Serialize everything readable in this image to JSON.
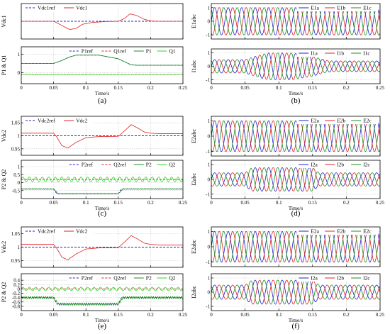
{
  "chart_data": [
    {
      "type": "line",
      "panel_label": "(a)",
      "xlabel": "Time/s",
      "xlim": [
        0,
        0.25
      ],
      "xticks": [
        "0",
        "0.05",
        "0.1",
        "0.15",
        "0.2",
        "0.25"
      ],
      "grid": true,
      "subplots": [
        {
          "ylabel": "Vdc1",
          "ylim": [
            0.94,
            1.06
          ],
          "yticks": [],
          "legend_position": "top-left",
          "series": [
            {
              "name": "Vdc1ref",
              "color": "#1f1fd0",
              "style": "dashed",
              "x": [
                0,
                0.25
              ],
              "y": [
                1.0,
                1.0
              ]
            },
            {
              "name": "Vdc1",
              "color": "#e02020",
              "style": "solid",
              "x": [
                0,
                0.05,
                0.055,
                0.065,
                0.075,
                0.085,
                0.095,
                0.11,
                0.13,
                0.15,
                0.16,
                0.168,
                0.178,
                0.19,
                0.2,
                0.21,
                0.25
              ],
              "y": [
                1.0,
                1.0,
                0.995,
                0.983,
                0.972,
                0.976,
                0.99,
                0.996,
                0.999,
                1.0,
                1.01,
                1.025,
                1.02,
                1.007,
                1.001,
                1.0,
                1.0
              ]
            }
          ]
        },
        {
          "ylabel": "P1 & Q1",
          "ylim": [
            -0.6,
            1.4
          ],
          "yticks": [
            "0",
            "1"
          ],
          "legend_position": "top-right",
          "series": [
            {
              "name": "P1ref",
              "color": "#1f1fd0",
              "style": "dashed",
              "x": [
                0,
                0.05,
                0.06,
                0.075,
                0.085,
                0.12,
                0.15,
                0.17,
                0.18,
                0.25
              ],
              "y": [
                0.5,
                0.5,
                0.62,
                0.85,
                0.95,
                0.95,
                0.75,
                0.42,
                0.4,
                0.4
              ]
            },
            {
              "name": "Q1ref",
              "color": "#e02020",
              "style": "dashed",
              "x": [
                0,
                0.25
              ],
              "y": [
                -0.1,
                -0.1
              ]
            },
            {
              "name": "P1",
              "color": "#1a8f1a",
              "style": "solid",
              "x": [
                0,
                0.05,
                0.06,
                0.075,
                0.085,
                0.12,
                0.15,
                0.17,
                0.18,
                0.25
              ],
              "y": [
                0.5,
                0.5,
                0.62,
                0.85,
                0.95,
                0.95,
                0.75,
                0.42,
                0.4,
                0.4
              ]
            },
            {
              "name": "Q1",
              "color": "#22dd22",
              "style": "solid",
              "x": [
                0,
                0.25
              ],
              "y": [
                -0.1,
                -0.1
              ]
            }
          ]
        }
      ]
    },
    {
      "type": "line",
      "panel_label": "(b)",
      "xlabel": "Time/s",
      "xlim": [
        0,
        0.25
      ],
      "xticks": [
        "0",
        "0.05",
        "0.1",
        "0.15",
        "0.2",
        "0.25"
      ],
      "grid": true,
      "subplots": [
        {
          "ylabel": "E1abc",
          "ylim": [
            -1.3,
            1.3
          ],
          "yticks": [
            "-1",
            "0",
            "1"
          ],
          "legend_position": "top-right",
          "series": [
            {
              "name": "E1a",
              "color": "#1f1fd0",
              "style": "solid",
              "amplitude": 1.0,
              "frequency_hz": 50,
              "phase_deg": 0
            },
            {
              "name": "E1b",
              "color": "#e02020",
              "style": "solid",
              "amplitude": 1.0,
              "frequency_hz": 50,
              "phase_deg": -120
            },
            {
              "name": "E1c",
              "color": "#1a8f1a",
              "style": "solid",
              "amplitude": 1.0,
              "frequency_hz": 50,
              "phase_deg": 120
            }
          ]
        },
        {
          "ylabel": "I1abc",
          "ylim": [
            -1.3,
            1.3
          ],
          "yticks": [
            "-1",
            "0",
            "1"
          ],
          "legend_position": "top-right",
          "envelope": {
            "x": [
              0,
              0.05,
              0.075,
              0.085,
              0.12,
              0.15,
              0.17,
              0.18,
              0.25
            ],
            "y": [
              0.5,
              0.5,
              0.9,
              1.0,
              1.0,
              0.75,
              0.45,
              0.4,
              0.4
            ]
          },
          "series": [
            {
              "name": "I1a",
              "color": "#1f1fd0",
              "style": "solid",
              "frequency_hz": 50,
              "phase_deg": 0
            },
            {
              "name": "I1b",
              "color": "#e02020",
              "style": "solid",
              "frequency_hz": 50,
              "phase_deg": -120
            },
            {
              "name": "I1c",
              "color": "#1a8f1a",
              "style": "solid",
              "frequency_hz": 50,
              "phase_deg": 120
            }
          ]
        }
      ]
    },
    {
      "type": "line",
      "panel_label": "(c)",
      "xlabel": "Time/s",
      "xlim": [
        0,
        0.25
      ],
      "xticks": [
        "0",
        "0.05",
        "0.1",
        "0.15",
        "0.2",
        "0.25"
      ],
      "grid": true,
      "subplots": [
        {
          "ylabel": "Vdc2",
          "ylim": [
            0.925,
            1.075
          ],
          "yticks": [
            "0.95",
            "1",
            "1.05"
          ],
          "legend_position": "top-left",
          "series": [
            {
              "name": "Vdc2ref",
              "color": "#1f1fd0",
              "style": "dashed",
              "x": [
                0,
                0.25
              ],
              "y": [
                1.0,
                1.0
              ]
            },
            {
              "name": "Vdc2",
              "color": "#e02020",
              "style": "solid",
              "x": [
                0,
                0.05,
                0.055,
                0.063,
                0.072,
                0.085,
                0.1,
                0.12,
                0.15,
                0.158,
                0.17,
                0.18,
                0.19,
                0.2,
                0.215,
                0.25
              ],
              "y": [
                1.01,
                1.01,
                0.995,
                0.962,
                0.953,
                0.975,
                0.993,
                0.997,
                0.998,
                1.015,
                1.043,
                1.03,
                1.015,
                1.01,
                1.008,
                1.008
              ]
            }
          ]
        },
        {
          "ylabel": "P2 & Q2",
          "ylim": [
            -1.0,
            1.4
          ],
          "yticks": [
            "-0.5",
            "0",
            "0.5",
            "1"
          ],
          "legend_position": "top-right",
          "series": [
            {
              "name": "P2ref",
              "color": "#1f1fd0",
              "style": "dashed",
              "x": [
                0,
                0.05,
                0.055,
                0.15,
                0.155,
                0.25
              ],
              "y": [
                -0.4,
                -0.4,
                -0.7,
                -0.7,
                -0.4,
                -0.4
              ]
            },
            {
              "name": "Q2ref",
              "color": "#e02020",
              "style": "dashed",
              "x": [
                0,
                0.25
              ],
              "y": [
                0.2,
                0.2
              ]
            },
            {
              "name": "P2",
              "color": "#1a8f1a",
              "style": "solid",
              "x": [
                0,
                0.05,
                0.057,
                0.15,
                0.157,
                0.25
              ],
              "y": [
                -0.4,
                -0.4,
                -0.7,
                -0.7,
                -0.4,
                -0.4
              ],
              "ripple": 0.02
            },
            {
              "name": "Q2",
              "color": "#22dd22",
              "style": "solid",
              "x": [
                0,
                0.25
              ],
              "y": [
                0.2,
                0.2
              ],
              "ripple": 0.15,
              "ripple_frequency_hz": 100
            }
          ]
        }
      ]
    },
    {
      "type": "line",
      "panel_label": "(d)",
      "xlabel": "Time/s",
      "xlim": [
        0,
        0.25
      ],
      "xticks": [
        "0",
        "0.05",
        "0.1",
        "0.15",
        "0.2",
        "0.25"
      ],
      "grid": true,
      "subplots": [
        {
          "ylabel": "E2abc",
          "ylim": [
            -1.3,
            1.3
          ],
          "yticks": [
            "-1",
            "0",
            "1"
          ],
          "legend_position": "top-right",
          "series": [
            {
              "name": "E2a",
              "color": "#1f1fd0",
              "style": "solid",
              "amplitude": 1.0,
              "frequency_hz": 50,
              "phase_deg": 0
            },
            {
              "name": "E2b",
              "color": "#e02020",
              "style": "solid",
              "amplitude": 1.0,
              "frequency_hz": 50,
              "phase_deg": -120
            },
            {
              "name": "E2c",
              "color": "#1a8f1a",
              "style": "solid",
              "amplitude": 1.0,
              "frequency_hz": 50,
              "phase_deg": 120
            }
          ]
        },
        {
          "ylabel": "I2abc",
          "ylim": [
            -1.3,
            1.3
          ],
          "yticks": [
            "-1",
            "0",
            "1"
          ],
          "legend_position": "top-right",
          "envelope": {
            "x": [
              0,
              0.05,
              0.06,
              0.15,
              0.16,
              0.25
            ],
            "y": [
              0.45,
              0.45,
              0.8,
              0.8,
              0.45,
              0.45
            ]
          },
          "series": [
            {
              "name": "I2a",
              "color": "#1f1fd0",
              "style": "solid",
              "frequency_hz": 50,
              "phase_deg": 0
            },
            {
              "name": "I2b",
              "color": "#e02020",
              "style": "solid",
              "frequency_hz": 50,
              "phase_deg": -120
            },
            {
              "name": "I2c",
              "color": "#1a8f1a",
              "style": "solid",
              "frequency_hz": 50,
              "phase_deg": 120
            }
          ]
        }
      ]
    },
    {
      "type": "line",
      "panel_label": "(e)",
      "xlabel": "Time/s",
      "xlim": [
        0,
        0.25
      ],
      "xticks": [
        "0",
        "0.05",
        "0.1",
        "0.15",
        "0.2",
        "0.25"
      ],
      "grid": true,
      "subplots": [
        {
          "ylabel": "Vdc2",
          "ylim": [
            0.925,
            1.075
          ],
          "yticks": [
            "0.95",
            "1",
            "1.05"
          ],
          "legend_position": "top-left",
          "series": [
            {
              "name": "Vdc2ref",
              "color": "#1f1fd0",
              "style": "dashed",
              "x": [
                0,
                0.25
              ],
              "y": [
                1.0,
                1.0
              ]
            },
            {
              "name": "Vdc2",
              "color": "#e02020",
              "style": "solid",
              "x": [
                0,
                0.05,
                0.055,
                0.063,
                0.072,
                0.085,
                0.1,
                0.12,
                0.15,
                0.158,
                0.17,
                0.18,
                0.19,
                0.2,
                0.215,
                0.25
              ],
              "y": [
                1.01,
                1.01,
                0.995,
                0.962,
                0.953,
                0.975,
                0.993,
                0.997,
                0.998,
                1.015,
                1.043,
                1.03,
                1.015,
                1.01,
                1.008,
                1.008
              ]
            }
          ]
        },
        {
          "ylabel": "P2 & Q2",
          "ylim": [
            -1.0,
            0.7
          ],
          "yticks": [
            "-0.8",
            "-0.6",
            "-0.4",
            "-0.2",
            "0",
            "0.2",
            "0.4"
          ],
          "legend_position": "top-right",
          "series": [
            {
              "name": "P2ref",
              "color": "#1f1fd0",
              "style": "dashed",
              "x": [
                0,
                0.05,
                0.055,
                0.15,
                0.155,
                0.25
              ],
              "y": [
                -0.4,
                -0.4,
                -0.7,
                -0.7,
                -0.4,
                -0.4
              ]
            },
            {
              "name": "Q2ref",
              "color": "#e02020",
              "style": "dashed",
              "x": [
                0,
                0.25
              ],
              "y": [
                0.0,
                0.0
              ]
            },
            {
              "name": "P2",
              "color": "#1a8f1a",
              "style": "solid",
              "x": [
                0,
                0.05,
                0.057,
                0.15,
                0.157,
                0.25
              ],
              "y": [
                -0.4,
                -0.4,
                -0.7,
                -0.7,
                -0.4,
                -0.4
              ],
              "ripple": 0.05
            },
            {
              "name": "Q2",
              "color": "#22dd22",
              "style": "solid",
              "x": [
                0,
                0.25
              ],
              "y": [
                0.0,
                0.0
              ],
              "ripple": 0.08,
              "ripple_frequency_hz": 100
            }
          ]
        }
      ]
    },
    {
      "type": "line",
      "panel_label": "(f)",
      "xlabel": "Time/s",
      "xlim": [
        0,
        0.25
      ],
      "xticks": [
        "0",
        "0.05",
        "0.1",
        "0.15",
        "0.2",
        "0.25"
      ],
      "grid": true,
      "subplots": [
        {
          "ylabel": "E2abc",
          "ylim": [
            -1.3,
            1.3
          ],
          "yticks": [
            "-1",
            "0",
            "1"
          ],
          "legend_position": "top-right",
          "series": [
            {
              "name": "E2a",
              "color": "#1f1fd0",
              "style": "solid",
              "amplitude": 1.0,
              "frequency_hz": 50,
              "phase_deg": 0
            },
            {
              "name": "E2b",
              "color": "#e02020",
              "style": "solid",
              "amplitude": 1.0,
              "frequency_hz": 50,
              "phase_deg": -120
            },
            {
              "name": "E2c",
              "color": "#1a8f1a",
              "style": "solid",
              "amplitude": 1.0,
              "frequency_hz": 50,
              "phase_deg": 120
            }
          ]
        },
        {
          "ylabel": "I2abc",
          "ylim": [
            -1.3,
            1.3
          ],
          "yticks": [
            "-1",
            "0",
            "1"
          ],
          "legend_position": "top-right",
          "envelope": {
            "x": [
              0,
              0.05,
              0.06,
              0.15,
              0.16,
              0.25
            ],
            "y": [
              0.5,
              0.5,
              0.85,
              0.85,
              0.5,
              0.5
            ]
          },
          "series": [
            {
              "name": "I2a",
              "color": "#1f1fd0",
              "style": "solid",
              "frequency_hz": 50,
              "phase_deg": 0
            },
            {
              "name": "I2b",
              "color": "#e02020",
              "style": "solid",
              "frequency_hz": 50,
              "phase_deg": -120
            },
            {
              "name": "I2c",
              "color": "#1a8f1a",
              "style": "solid",
              "frequency_hz": 50,
              "phase_deg": 120
            }
          ]
        }
      ]
    }
  ]
}
